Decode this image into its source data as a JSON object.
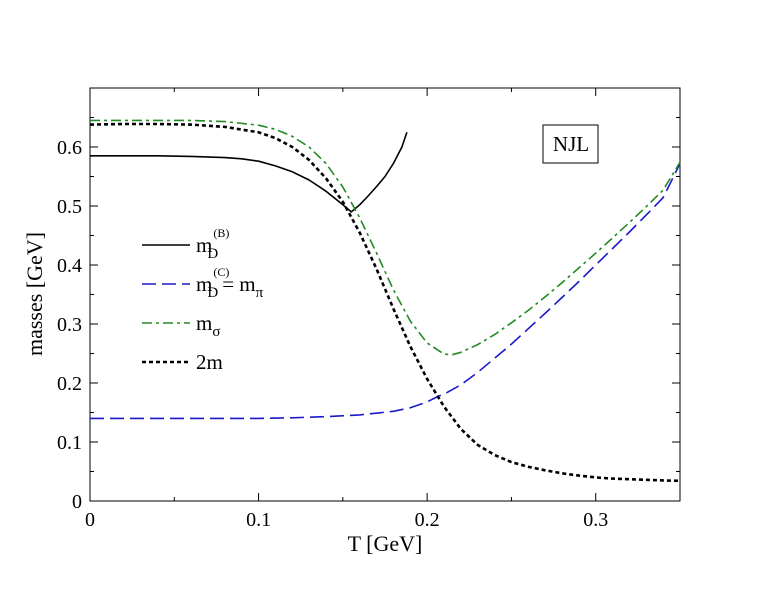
{
  "chart_data": {
    "type": "line",
    "xlabel": "T [GeV]",
    "ylabel": "masses [GeV]",
    "xlim": [
      0,
      0.35
    ],
    "ylim": [
      0,
      0.7
    ],
    "x_ticks": [
      "0",
      "0.1",
      "0.2",
      "0.3"
    ],
    "y_ticks": [
      "0",
      "0.1",
      "0.2",
      "0.3",
      "0.4",
      "0.5",
      "0.6"
    ],
    "annotation": "NJL",
    "legend_position": "left-middle",
    "grid": false,
    "series": [
      {
        "name": "m_D^(B)",
        "legend": {
          "base": "m",
          "sub": "D",
          "sup": "(B)",
          "suffix": ""
        },
        "color": "#000000",
        "style": "solid",
        "points": [
          [
            0,
            0.585
          ],
          [
            0.02,
            0.585
          ],
          [
            0.04,
            0.585
          ],
          [
            0.06,
            0.584
          ],
          [
            0.08,
            0.582
          ],
          [
            0.09,
            0.58
          ],
          [
            0.1,
            0.576
          ],
          [
            0.11,
            0.568
          ],
          [
            0.12,
            0.558
          ],
          [
            0.13,
            0.544
          ],
          [
            0.14,
            0.525
          ],
          [
            0.15,
            0.502
          ],
          [
            0.155,
            0.49
          ],
          [
            0.16,
            0.502
          ],
          [
            0.165,
            0.517
          ],
          [
            0.17,
            0.533
          ],
          [
            0.175,
            0.55
          ],
          [
            0.18,
            0.572
          ],
          [
            0.185,
            0.6
          ],
          [
            0.188,
            0.625
          ]
        ]
      },
      {
        "name": "m_D^(C) = m_π",
        "legend": {
          "base": "m",
          "sub": "D",
          "sup": "(C)",
          "suffix": "= m",
          "suffix_sub": "π"
        },
        "color": "#1a1acc",
        "style": "dashed",
        "points": [
          [
            0,
            0.14
          ],
          [
            0.05,
            0.14
          ],
          [
            0.1,
            0.14
          ],
          [
            0.12,
            0.141
          ],
          [
            0.14,
            0.143
          ],
          [
            0.16,
            0.146
          ],
          [
            0.18,
            0.152
          ],
          [
            0.19,
            0.158
          ],
          [
            0.2,
            0.168
          ],
          [
            0.207,
            0.178
          ],
          [
            0.21,
            0.181
          ],
          [
            0.22,
            0.197
          ],
          [
            0.23,
            0.218
          ],
          [
            0.24,
            0.242
          ],
          [
            0.25,
            0.266
          ],
          [
            0.26,
            0.292
          ],
          [
            0.27,
            0.318
          ],
          [
            0.28,
            0.345
          ],
          [
            0.29,
            0.372
          ],
          [
            0.3,
            0.4
          ],
          [
            0.31,
            0.428
          ],
          [
            0.32,
            0.456
          ],
          [
            0.33,
            0.485
          ],
          [
            0.34,
            0.514
          ],
          [
            0.35,
            0.572
          ]
        ]
      },
      {
        "name": "m_σ",
        "legend": {
          "base": "m",
          "sub": "σ",
          "sup": "",
          "suffix": ""
        },
        "color": "#228b22",
        "style": "dashdot",
        "points": [
          [
            0,
            0.645
          ],
          [
            0.02,
            0.645
          ],
          [
            0.04,
            0.645
          ],
          [
            0.06,
            0.645
          ],
          [
            0.08,
            0.643
          ],
          [
            0.1,
            0.637
          ],
          [
            0.11,
            0.63
          ],
          [
            0.12,
            0.618
          ],
          [
            0.13,
            0.6
          ],
          [
            0.14,
            0.572
          ],
          [
            0.15,
            0.532
          ],
          [
            0.16,
            0.48
          ],
          [
            0.17,
            0.42
          ],
          [
            0.18,
            0.358
          ],
          [
            0.19,
            0.305
          ],
          [
            0.2,
            0.268
          ],
          [
            0.21,
            0.249
          ],
          [
            0.215,
            0.248
          ],
          [
            0.22,
            0.252
          ],
          [
            0.23,
            0.265
          ],
          [
            0.24,
            0.282
          ],
          [
            0.25,
            0.302
          ],
          [
            0.26,
            0.323
          ],
          [
            0.27,
            0.346
          ],
          [
            0.28,
            0.37
          ],
          [
            0.29,
            0.395
          ],
          [
            0.3,
            0.42
          ],
          [
            0.31,
            0.446
          ],
          [
            0.32,
            0.472
          ],
          [
            0.33,
            0.499
          ],
          [
            0.34,
            0.527
          ],
          [
            0.35,
            0.574
          ]
        ]
      },
      {
        "name": "2m",
        "legend": {
          "base": "2m",
          "sub": "",
          "sup": "",
          "suffix": ""
        },
        "color": "#000000",
        "style": "dotted",
        "points": [
          [
            0,
            0.638
          ],
          [
            0.02,
            0.639
          ],
          [
            0.04,
            0.639
          ],
          [
            0.06,
            0.638
          ],
          [
            0.08,
            0.634
          ],
          [
            0.1,
            0.625
          ],
          [
            0.11,
            0.615
          ],
          [
            0.12,
            0.6
          ],
          [
            0.13,
            0.578
          ],
          [
            0.14,
            0.547
          ],
          [
            0.15,
            0.507
          ],
          [
            0.16,
            0.455
          ],
          [
            0.17,
            0.393
          ],
          [
            0.18,
            0.326
          ],
          [
            0.19,
            0.262
          ],
          [
            0.2,
            0.207
          ],
          [
            0.21,
            0.16
          ],
          [
            0.22,
            0.122
          ],
          [
            0.23,
            0.095
          ],
          [
            0.24,
            0.078
          ],
          [
            0.25,
            0.066
          ],
          [
            0.26,
            0.058
          ],
          [
            0.27,
            0.052
          ],
          [
            0.28,
            0.047
          ],
          [
            0.29,
            0.043
          ],
          [
            0.3,
            0.04
          ],
          [
            0.31,
            0.038
          ],
          [
            0.32,
            0.037
          ],
          [
            0.33,
            0.036
          ],
          [
            0.34,
            0.035
          ],
          [
            0.35,
            0.034
          ]
        ]
      }
    ]
  }
}
